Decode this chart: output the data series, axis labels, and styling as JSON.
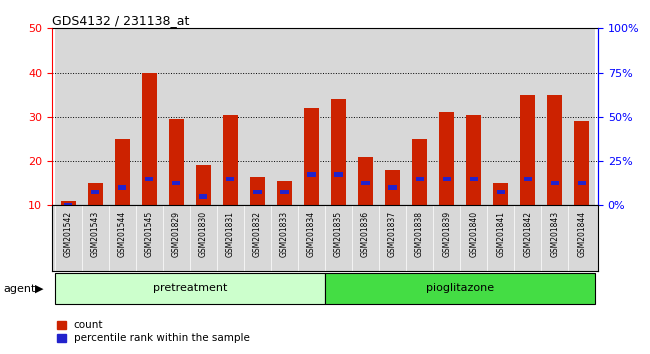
{
  "title": "GDS4132 / 231138_at",
  "samples": [
    "GSM201542",
    "GSM201543",
    "GSM201544",
    "GSM201545",
    "GSM201829",
    "GSM201830",
    "GSM201831",
    "GSM201832",
    "GSM201833",
    "GSM201834",
    "GSM201835",
    "GSM201836",
    "GSM201837",
    "GSM201838",
    "GSM201839",
    "GSM201840",
    "GSM201841",
    "GSM201842",
    "GSM201843",
    "GSM201844"
  ],
  "count_values": [
    11,
    15,
    25,
    40,
    29.5,
    19,
    30.5,
    16.5,
    15.5,
    32,
    34,
    21,
    18,
    25,
    31,
    30.5,
    15,
    35,
    35,
    29
  ],
  "percentile_values": [
    10,
    13,
    14,
    16,
    15,
    12,
    16,
    13,
    13,
    17,
    17,
    15,
    14,
    16,
    16,
    16,
    13,
    16,
    15,
    15
  ],
  "pretreatment_count": 10,
  "pioglitazone_count": 10,
  "pretreatment_label": "pretreatment",
  "pioglitazone_label": "pioglitazone",
  "agent_label": "agent",
  "count_label": "count",
  "percentile_label": "percentile rank within the sample",
  "bar_color_red": "#CC2200",
  "bar_color_blue": "#2222CC",
  "pretreatment_color": "#CCFFCC",
  "pioglitazone_color": "#44DD44",
  "left_ylim": [
    10,
    50
  ],
  "left_yticks": [
    10,
    20,
    30,
    40,
    50
  ],
  "right_ylim": [
    0,
    100
  ],
  "right_yticks": [
    0,
    25,
    50,
    75,
    100
  ],
  "bar_width": 0.55,
  "col_bg_color": "#D8D8D8",
  "plot_bg_color": "#FFFFFF"
}
